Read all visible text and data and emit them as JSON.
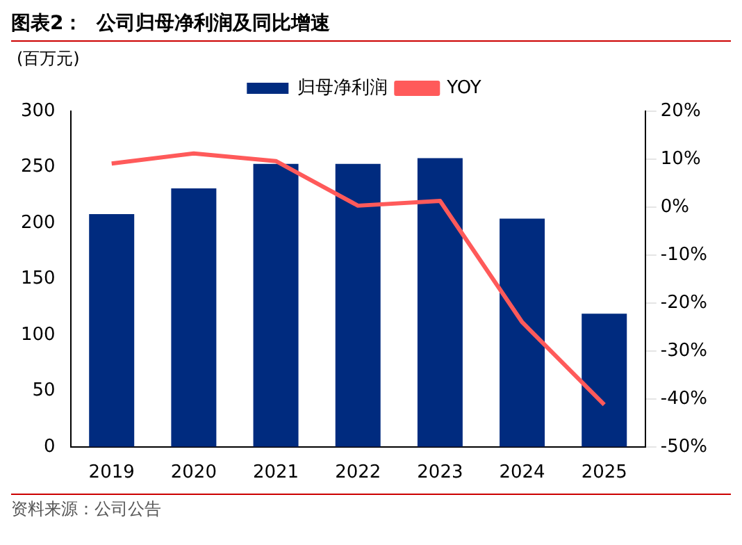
{
  "chart_data": {
    "type": "bar",
    "title": "图表2：  公司归母净利润及同比增速",
    "ylabel": "(百万元)",
    "categories": [
      "2019",
      "2020",
      "2021",
      "2022",
      "2023",
      "2024",
      "2025"
    ],
    "series": [
      {
        "name": "归母净利润",
        "color": "#002b7f",
        "values": [
          208,
          231,
          253,
          253,
          258,
          204,
          119
        ]
      },
      {
        "name": "YOY",
        "type": "line",
        "axis": "y2",
        "color": "#ff5a5a",
        "values": [
          9.1,
          11.2,
          9.6,
          0.3,
          1.3,
          -24,
          -41.2
        ]
      }
    ],
    "ylim": [
      0,
      300
    ],
    "yticks": [
      0,
      50,
      100,
      150,
      200,
      250,
      300
    ],
    "y2lim": [
      -50,
      20
    ],
    "y2ticks": [
      {
        "value": -50,
        "label": "-50%"
      },
      {
        "value": -40,
        "label": "-40%"
      },
      {
        "value": -30,
        "label": "-30%"
      },
      {
        "value": -20,
        "label": "-20%"
      },
      {
        "value": -10,
        "label": "-10%"
      },
      {
        "value": 0,
        "label": "0%"
      },
      {
        "value": 10,
        "label": "10%"
      },
      {
        "value": 20,
        "label": "20%"
      }
    ],
    "legend": "top",
    "marker": "none",
    "grid": false,
    "annotations": [
      "资料来源：公司公告"
    ]
  }
}
